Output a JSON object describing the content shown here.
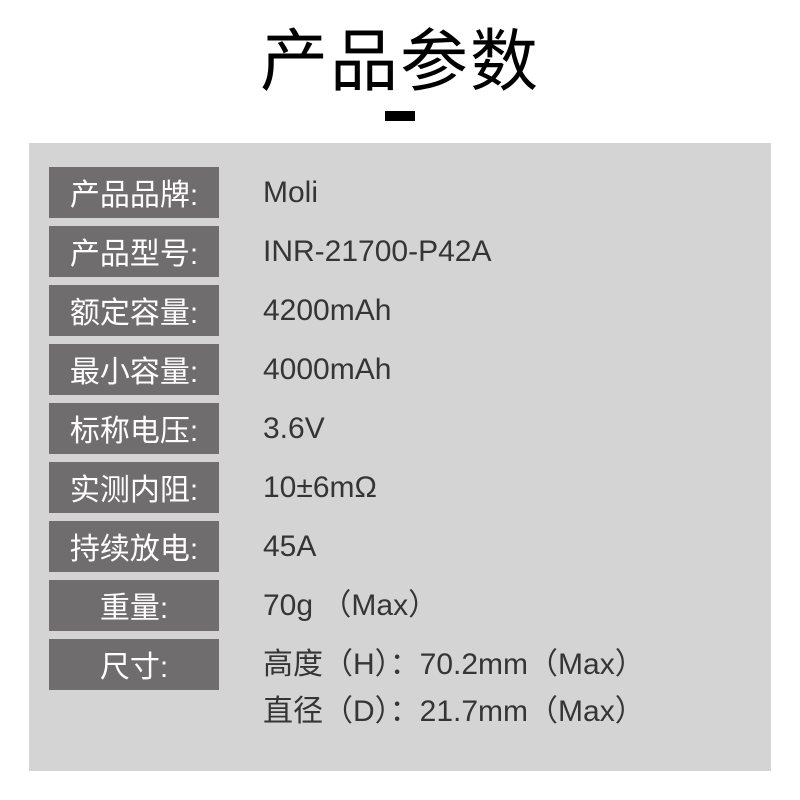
{
  "title": "产品参数",
  "colors": {
    "page_bg": "#ffffff",
    "panel_bg": "#d4d4d4",
    "pill_bg": "#706d6e",
    "pill_text": "#ffffff",
    "value_text": "#353535",
    "title_text": "#000000",
    "accent": "#000000"
  },
  "typography": {
    "title_fontsize": 68,
    "row_fontsize": 30
  },
  "rows": [
    {
      "label": "产品品牌:",
      "value": "Moli"
    },
    {
      "label": "产品型号:",
      "value": "INR-21700-P42A"
    },
    {
      "label": "额定容量:",
      "value": "4200mAh"
    },
    {
      "label": "最小容量:",
      "value": "4000mAh"
    },
    {
      "label": "标称电压:",
      "value": "3.6V"
    },
    {
      "label": "实测内阻:",
      "value": "10±6mΩ"
    },
    {
      "label": "持续放电:",
      "value": "45A"
    },
    {
      "label": "重量:",
      "value": "70g （Max）"
    },
    {
      "label": "尺寸:",
      "value": "高度（H）：70.2mm（Max）\n直径（D）：21.7mm（Max）"
    }
  ]
}
